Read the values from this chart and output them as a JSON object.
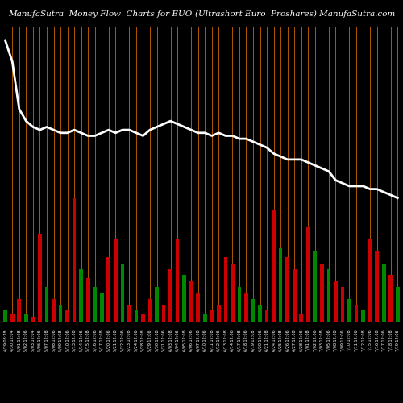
{
  "title_left": "ManufaSutra  Money Flow  Charts for EUO",
  "title_right": "(Ultrashort Euro  Proshares) ManufaSutra.com",
  "background_color": "#000000",
  "orange_line_color": "#CC6600",
  "line_color": "#FFFFFF",
  "categories": [
    "4/29 08:18",
    "4/30 12:04",
    "5/01 12:08",
    "5/02 12:06",
    "5/03 12:04",
    "5/06 12:06",
    "5/07 12:08",
    "5/08 12:06",
    "5/09 12:08",
    "5/10 12:06",
    "5/13 12:08",
    "5/14 12:06",
    "5/15 12:08",
    "5/16 12:06",
    "5/17 12:08",
    "5/20 12:06",
    "5/21 12:08",
    "5/22 12:06",
    "5/23 12:08",
    "5/24 12:06",
    "5/28 12:08",
    "5/29 12:06",
    "5/30 12:08",
    "5/31 12:06",
    "6/03 12:08",
    "6/04 12:06",
    "6/05 12:08",
    "6/06 12:06",
    "6/07 12:08",
    "6/10 12:06",
    "6/11 12:08",
    "6/12 12:06",
    "6/13 12:08",
    "6/14 12:06",
    "6/17 12:08",
    "6/18 12:06",
    "6/19 12:08",
    "6/20 12:06",
    "6/21 12:08",
    "6/24 12:06",
    "6/25 12:08",
    "6/26 12:06",
    "6/27 12:08",
    "6/28 12:06",
    "7/01 12:08",
    "7/02 12:06",
    "7/03 12:08",
    "7/05 12:06",
    "7/08 12:08",
    "7/09 12:06",
    "7/10 12:08",
    "7/11 12:06",
    "7/12 12:08",
    "7/15 12:06",
    "7/16 12:08",
    "7/17 12:06",
    "7/18 12:08",
    "7/19 12:06"
  ],
  "bar_heights": [
    4,
    3,
    8,
    3,
    2,
    30,
    12,
    8,
    6,
    4,
    42,
    18,
    15,
    12,
    10,
    22,
    28,
    20,
    6,
    4,
    3,
    8,
    12,
    6,
    18,
    28,
    16,
    14,
    10,
    3,
    4,
    6,
    22,
    20,
    12,
    10,
    8,
    6,
    4,
    38,
    25,
    22,
    18,
    3,
    32,
    24,
    20,
    18,
    14,
    12,
    8,
    6,
    4,
    28,
    24,
    20,
    16,
    12
  ],
  "bar_colors": [
    "green",
    "red",
    "red",
    "green",
    "red",
    "red",
    "green",
    "red",
    "green",
    "red",
    "red",
    "green",
    "red",
    "green",
    "green",
    "red",
    "red",
    "green",
    "red",
    "green",
    "red",
    "red",
    "green",
    "red",
    "red",
    "red",
    "green",
    "red",
    "red",
    "green",
    "red",
    "red",
    "red",
    "red",
    "green",
    "red",
    "green",
    "green",
    "red",
    "red",
    "green",
    "red",
    "red",
    "red",
    "red",
    "green",
    "red",
    "green",
    "red",
    "red",
    "green",
    "red",
    "green",
    "red",
    "red",
    "green",
    "red",
    "green"
  ],
  "price_line": [
    95,
    88,
    72,
    68,
    66,
    65,
    66,
    65,
    64,
    64,
    65,
    64,
    63,
    63,
    64,
    65,
    64,
    65,
    65,
    64,
    63,
    65,
    66,
    67,
    68,
    67,
    66,
    65,
    64,
    64,
    63,
    64,
    63,
    63,
    62,
    62,
    61,
    60,
    59,
    57,
    56,
    55,
    55,
    55,
    54,
    53,
    52,
    51,
    48,
    47,
    46,
    46,
    46,
    45,
    45,
    44,
    43,
    42
  ],
  "ylim": [
    0,
    100
  ],
  "title_fontsize": 7.5
}
